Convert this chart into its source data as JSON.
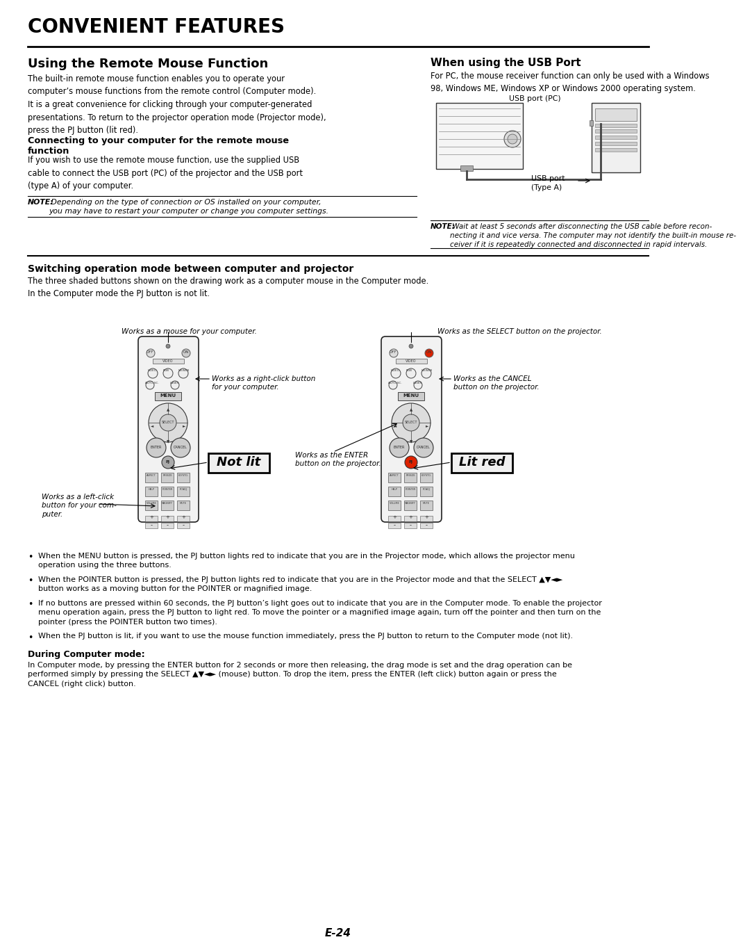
{
  "title": "CONVENIENT FEATURES",
  "page_number": "E-24",
  "bg": "#ffffff",
  "left_heading": "Using the Remote Mouse Function",
  "right_heading": "When using the USB Port",
  "left_body1": "The built-in remote mouse function enables you to operate your\ncomputer’s mouse functions from the remote control (Computer mode).\nIt is a great convenience for clicking through your computer-generated\npresentations. To return to the projector operation mode (Projector mode),\npress the PJ button (lit red).",
  "connect_heading": "Connecting to your computer for the remote mouse\nfunction",
  "connect_body": "If you wish to use the remote mouse function, use the supplied USB\ncable to connect the USB port (PC) of the projector and the USB port\n(type A) of your computer.",
  "note1_bold": "NOTE:",
  "note1_rest": " Depending on the type of connection or OS installed on your computer,\nyou may have to restart your computer or change you computer settings.",
  "usb_body": "For PC, the mouse receiver function can only be used with a Windows\n98, Windows ME, Windows XP or Windows 2000 operating system.",
  "usb_label_top": "USB port (PC)",
  "usb_label_bottom": "USB port\n(Type A)",
  "note2_bold": "NOTE:",
  "note2_rest": " Wait at least 5 seconds after disconnecting the USB cable before recon-\nnecting it and vice versa. The computer may not identify the built-in mouse re-\nceiver if it is repeatedly connected and disconnected in rapid intervals.",
  "switch_heading": "Switching operation mode between computer and projector",
  "switch_body": "The three shaded buttons shown on the drawing work as a computer mouse in the Computer mode.\nIn the Computer mode the PJ button is not lit.",
  "annot_mouse": "Works as a mouse for your computer.",
  "annot_right_click": "Works as a right-click button\nfor your computer.",
  "annot_left_click": "Works as a left-click\nbutton for your com-\nputer.",
  "annot_notlit": "Not lit",
  "annot_select": "Works as the SELECT button on the projector.",
  "annot_cancel": "Works as the CANCEL\nbutton on the projector.",
  "annot_enter": "Works as the ENTER\nbutton on the projector.",
  "annot_litred": "Lit red",
  "bullet1": "When the MENU button is pressed, the PJ button lights red to indicate that you are in the Projector mode, which allows the projector menu\noperation using the three buttons.",
  "bullet2": "When the POINTER button is pressed, the PJ button lights red to indicate that you are in the Projector mode and that the SELECT ▲▼◄►\nbutton works as a moving button for the POINTER or magnified image.",
  "bullet3": "If no buttons are pressed within 60 seconds, the PJ button’s light goes out to indicate that you are in the Computer mode. To enable the projector\nmenu operation again, press the PJ button to light red. To move the pointer or a magnified image again, turn off the pointer and then turn on the\npointer (press the POINTER button two times).",
  "bullet4": "When the PJ button is lit, if you want to use the mouse function immediately, press the PJ button to return to the Computer mode (not lit).",
  "during_heading": "During Computer mode:",
  "during_body": "In Computer mode, by pressing the ENTER button for 2 seconds or more then releasing, the drag mode is set and the drag operation can be\nperformed simply by pressing the SELECT ▲▼◄► (mouse) button. To drop the item, press the ENTER (left click) button again or press the\nCANCEL (right click) button."
}
